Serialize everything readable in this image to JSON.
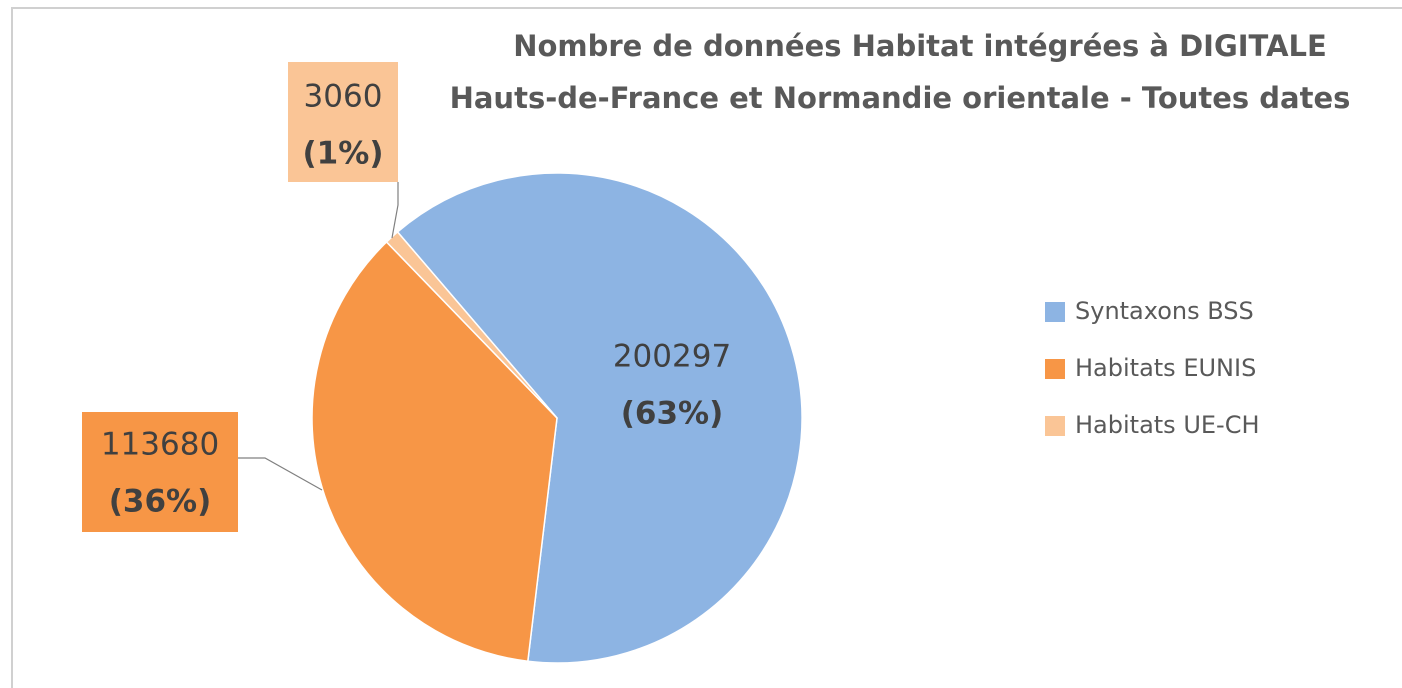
{
  "chart_data": {
    "type": "pie",
    "title": "Nombre de données Habitat intégrées à DIGITALE",
    "subtitle": "Hauts-de-France et Normandie orientale - Toutes dates",
    "categories": [
      "Syntaxons BSS",
      "Habitats EUNIS",
      "Habitats UE-CH"
    ],
    "values": [
      200297,
      113680,
      3060
    ],
    "percent_labels": [
      "(63%)",
      "(36%)",
      "(1%)"
    ],
    "colors": [
      "#8db4e3",
      "#f79646",
      "#fac596"
    ],
    "legend": "right"
  }
}
